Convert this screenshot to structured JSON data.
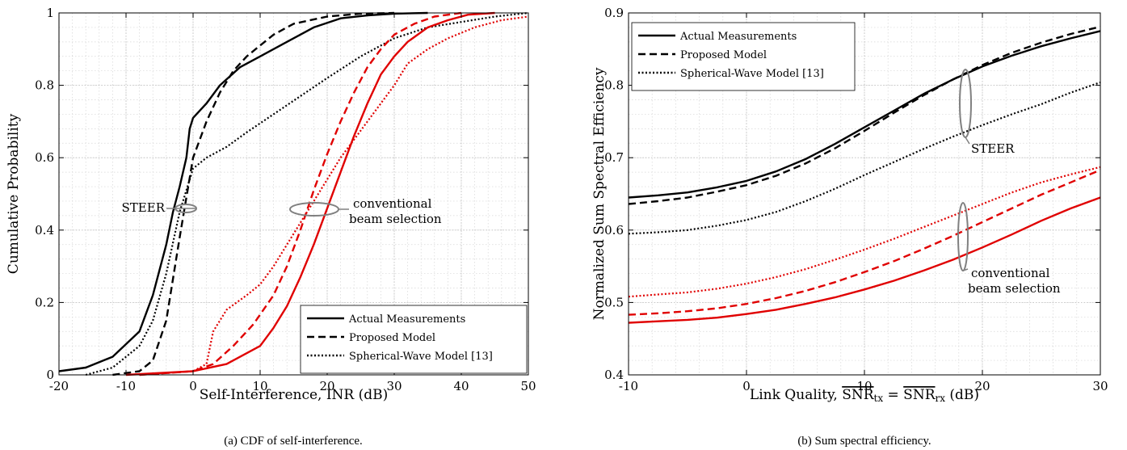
{
  "chart_data": [
    {
      "type": "line",
      "caption": "(a) CDF of self-interference.",
      "xlabel": "Self-Interference, INR (dB)",
      "ylabel": "Cumulative Probability",
      "xlim": [
        -20,
        50
      ],
      "ylim": [
        0,
        1
      ],
      "xticks": [
        -20,
        -10,
        0,
        10,
        20,
        30,
        40,
        50
      ],
      "xtick_labels": [
        "-20",
        "-10",
        "0",
        "10",
        "20",
        "30",
        "40",
        "50"
      ],
      "yticks": [
        0,
        0.2,
        0.4,
        0.6,
        0.8,
        1
      ],
      "ytick_labels": [
        "0",
        "0.2",
        "0.4",
        "0.6",
        "0.8",
        "1"
      ],
      "grid": true,
      "legend_position": "bottom-right",
      "legend": [
        {
          "label": "Actual Measurements",
          "style": "solid"
        },
        {
          "label": "Proposed Model",
          "style": "dashed"
        },
        {
          "label": "Spherical-Wave Model [13]",
          "style": "dotted"
        }
      ],
      "annotations": [
        {
          "text": "STEER",
          "x": -2,
          "y": 0.44
        },
        {
          "text": "conventional",
          "x": 20,
          "y": 0.46
        },
        {
          "text": "beam selection",
          "x": 20,
          "y": 0.42
        }
      ],
      "series": [
        {
          "color": "#000000",
          "style": "solid",
          "x": [
            -20,
            -16,
            -12,
            -8,
            -6,
            -4,
            -3,
            -2,
            -1,
            -0.5,
            0,
            2,
            4,
            7,
            10,
            14,
            18,
            22,
            26,
            30,
            35
          ],
          "y": [
            0.01,
            0.02,
            0.05,
            0.12,
            0.22,
            0.36,
            0.45,
            0.52,
            0.6,
            0.68,
            0.71,
            0.75,
            0.8,
            0.85,
            0.88,
            0.92,
            0.96,
            0.985,
            0.993,
            0.998,
            1
          ]
        },
        {
          "color": "#000000",
          "style": "dashed",
          "x": [
            -12,
            -8,
            -6,
            -4,
            -2,
            0,
            2,
            4,
            6,
            8,
            10,
            12,
            15,
            20,
            25,
            30
          ],
          "y": [
            0,
            0.01,
            0.04,
            0.15,
            0.38,
            0.6,
            0.7,
            0.78,
            0.84,
            0.88,
            0.91,
            0.94,
            0.97,
            0.99,
            0.998,
            1
          ]
        },
        {
          "color": "#000000",
          "style": "dotted",
          "x": [
            -16,
            -12,
            -8,
            -6,
            -4,
            -2,
            0,
            2,
            5,
            8,
            12,
            16,
            20,
            25,
            30,
            35,
            40,
            45,
            50
          ],
          "y": [
            0,
            0.02,
            0.08,
            0.15,
            0.28,
            0.45,
            0.57,
            0.6,
            0.63,
            0.67,
            0.72,
            0.77,
            0.82,
            0.88,
            0.93,
            0.96,
            0.975,
            0.99,
            1
          ]
        },
        {
          "color": "#e00000",
          "style": "solid",
          "x": [
            -10,
            0,
            5,
            10,
            12,
            14,
            16,
            18,
            20,
            22,
            24,
            26,
            28,
            30,
            32,
            35,
            38,
            41,
            45
          ],
          "y": [
            0,
            0.01,
            0.03,
            0.08,
            0.13,
            0.19,
            0.27,
            0.36,
            0.46,
            0.56,
            0.66,
            0.75,
            0.83,
            0.88,
            0.92,
            0.96,
            0.98,
            0.995,
            1
          ]
        },
        {
          "color": "#e00000",
          "style": "dashed",
          "x": [
            -8,
            0,
            3,
            6,
            9,
            12,
            14,
            16,
            18,
            20,
            22,
            24,
            26,
            28,
            30,
            33,
            36,
            40
          ],
          "y": [
            0,
            0.01,
            0.03,
            0.08,
            0.14,
            0.22,
            0.3,
            0.4,
            0.51,
            0.61,
            0.7,
            0.78,
            0.85,
            0.9,
            0.94,
            0.97,
            0.99,
            1
          ]
        },
        {
          "color": "#e00000",
          "style": "dotted",
          "x": [
            -8,
            0,
            2,
            3,
            5,
            8,
            10,
            12,
            14,
            16,
            18,
            20,
            22,
            24,
            26,
            28,
            30,
            32,
            35,
            38,
            42,
            46,
            50
          ],
          "y": [
            0,
            0.01,
            0.03,
            0.12,
            0.18,
            0.22,
            0.25,
            0.3,
            0.36,
            0.42,
            0.48,
            0.54,
            0.6,
            0.65,
            0.7,
            0.75,
            0.8,
            0.86,
            0.9,
            0.93,
            0.96,
            0.98,
            0.99
          ]
        }
      ]
    },
    {
      "type": "line",
      "caption": "(b) Sum spectral efficiency.",
      "xlabel": "Link Quality, SNR_tx = SNR_rx (dB)",
      "xlabel_parts": {
        "prefix": "Link Quality, ",
        "snr": "SNR",
        "tx": "tx",
        "eq": "=",
        "rx": "rx",
        "unit": "(dB)"
      },
      "ylabel": "Normalized Sum Spectral Efficiency",
      "xlim": [
        -10,
        30
      ],
      "ylim": [
        0.4,
        0.9
      ],
      "xticks": [
        -10,
        0,
        10,
        20,
        30
      ],
      "xtick_labels": [
        "-10",
        "0",
        "10",
        "20",
        "30"
      ],
      "yticks": [
        0.4,
        0.5,
        0.6,
        0.7,
        0.8,
        0.9
      ],
      "ytick_labels": [
        "0.4",
        "0.5",
        "0.6",
        "0.7",
        "0.8",
        "0.9"
      ],
      "grid": true,
      "legend_position": "top-left",
      "legend": [
        {
          "label": "Actual Measurements",
          "style": "solid"
        },
        {
          "label": "Proposed Model",
          "style": "dashed"
        },
        {
          "label": "Spherical-Wave Model [13]",
          "style": "dotted"
        }
      ],
      "annotations": [
        {
          "text": "STEER",
          "x": 21,
          "y": 0.715
        },
        {
          "text": "conventional",
          "x": 21.5,
          "y": 0.54
        },
        {
          "text": "beam selection",
          "x": 21.5,
          "y": 0.518
        }
      ],
      "series": [
        {
          "color": "#000000",
          "style": "solid",
          "x": [
            -10,
            -7.5,
            -5,
            -2.5,
            0,
            2.5,
            5,
            7.5,
            10,
            12.5,
            15,
            17.5,
            20,
            22.5,
            25,
            27.5,
            30
          ],
          "y": [
            0.645,
            0.648,
            0.652,
            0.659,
            0.668,
            0.681,
            0.698,
            0.719,
            0.742,
            0.765,
            0.788,
            0.808,
            0.826,
            0.841,
            0.854,
            0.865,
            0.875
          ]
        },
        {
          "color": "#000000",
          "style": "dashed",
          "x": [
            -10,
            -7.5,
            -5,
            -2.5,
            0,
            2.5,
            5,
            7.5,
            10,
            12.5,
            15,
            17.5,
            20,
            22.5,
            25,
            27.5,
            30
          ],
          "y": [
            0.636,
            0.64,
            0.645,
            0.653,
            0.662,
            0.675,
            0.692,
            0.713,
            0.737,
            0.762,
            0.786,
            0.808,
            0.828,
            0.845,
            0.859,
            0.871,
            0.881
          ]
        },
        {
          "color": "#000000",
          "style": "dotted",
          "x": [
            -10,
            -7.5,
            -5,
            -2.5,
            0,
            2.5,
            5,
            7.5,
            10,
            12.5,
            15,
            17.5,
            20,
            22.5,
            25,
            27.5,
            30
          ],
          "y": [
            0.595,
            0.597,
            0.6,
            0.606,
            0.614,
            0.625,
            0.64,
            0.657,
            0.676,
            0.694,
            0.712,
            0.729,
            0.745,
            0.76,
            0.774,
            0.79,
            0.804
          ]
        },
        {
          "color": "#e00000",
          "style": "solid",
          "x": [
            -10,
            -7.5,
            -5,
            -2.5,
            0,
            2.5,
            5,
            7.5,
            10,
            12.5,
            15,
            17.5,
            20,
            22.5,
            25,
            27.5,
            30
          ],
          "y": [
            0.472,
            0.474,
            0.476,
            0.479,
            0.484,
            0.49,
            0.498,
            0.507,
            0.518,
            0.53,
            0.544,
            0.559,
            0.576,
            0.594,
            0.613,
            0.63,
            0.645
          ]
        },
        {
          "color": "#e00000",
          "style": "dashed",
          "x": [
            -10,
            -7.5,
            -5,
            -2.5,
            0,
            2.5,
            5,
            7.5,
            10,
            12.5,
            15,
            17.5,
            20,
            22.5,
            25,
            27.5,
            30
          ],
          "y": [
            0.483,
            0.485,
            0.488,
            0.492,
            0.498,
            0.506,
            0.516,
            0.528,
            0.542,
            0.557,
            0.574,
            0.592,
            0.611,
            0.63,
            0.649,
            0.666,
            0.683
          ]
        },
        {
          "color": "#e00000",
          "style": "dotted",
          "x": [
            -10,
            -7.5,
            -5,
            -2.5,
            0,
            2.5,
            5,
            7.5,
            10,
            12.5,
            15,
            17.5,
            20,
            22.5,
            25,
            27.5,
            30
          ],
          "y": [
            0.508,
            0.511,
            0.514,
            0.519,
            0.526,
            0.535,
            0.546,
            0.559,
            0.573,
            0.588,
            0.604,
            0.62,
            0.636,
            0.652,
            0.666,
            0.677,
            0.687
          ]
        }
      ]
    }
  ]
}
